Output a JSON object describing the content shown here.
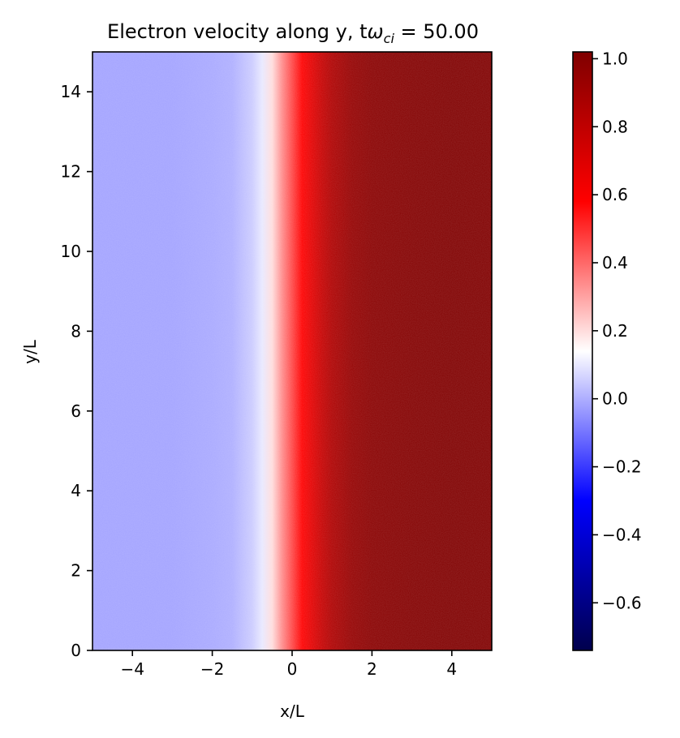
{
  "chart_data": {
    "type": "heatmap",
    "title": {
      "prefix": "Electron velocity along y, t",
      "symbol": "ω",
      "subscript": "ci",
      "suffix": " = 50.00"
    },
    "xlabel": "x/L",
    "ylabel": "y/L",
    "xlim": [
      -5,
      5
    ],
    "ylim": [
      0,
      15
    ],
    "x_ticks": [
      -4,
      -2,
      0,
      2,
      4
    ],
    "y_ticks": [
      0,
      2,
      4,
      6,
      8,
      10,
      12,
      14
    ],
    "colormap": "seismic",
    "colorbar": {
      "vmin": -0.74,
      "vmax": 1.02,
      "ticks": [
        -0.6,
        -0.4,
        -0.2,
        0.0,
        0.2,
        0.4,
        0.6,
        0.8,
        1.0
      ],
      "tick_labels": [
        "−0.6",
        "−0.4",
        "−0.2",
        "0.0",
        "0.2",
        "0.4",
        "0.6",
        "0.8",
        "1.0"
      ]
    },
    "field_profile": {
      "description_axis": "value varies with x only",
      "x": [
        -5.0,
        -4.0,
        -3.0,
        -2.0,
        -1.5,
        -1.0,
        -0.75,
        -0.5,
        -0.25,
        0.0,
        0.25,
        0.5,
        0.75,
        1.0,
        1.5,
        2.0,
        3.0,
        4.0,
        5.0
      ],
      "value": [
        -0.02,
        -0.02,
        -0.02,
        -0.01,
        0.0,
        0.05,
        0.1,
        0.2,
        0.34,
        0.46,
        0.58,
        0.68,
        0.78,
        0.86,
        0.95,
        0.99,
        1.01,
        1.02,
        1.02
      ]
    },
    "grid": false
  }
}
